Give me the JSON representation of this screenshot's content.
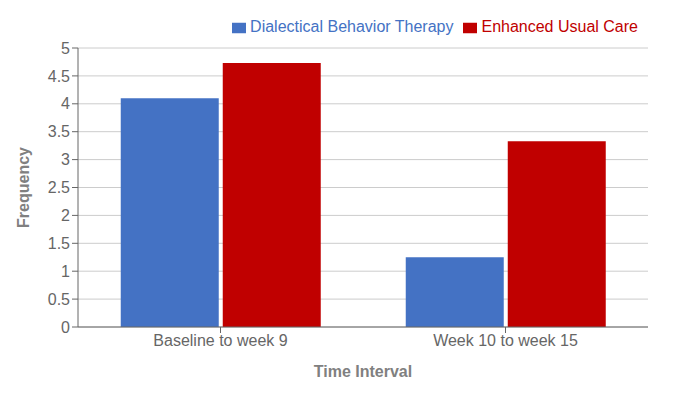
{
  "chart_data": {
    "type": "bar",
    "categories": [
      "Baseline to week 9",
      "Week 10 to week 15"
    ],
    "series": [
      {
        "name": "Dialectical Behavior Therapy",
        "color": "#4472C4",
        "values": [
          4.1,
          1.25
        ]
      },
      {
        "name": "Enhanced Usual Care",
        "color": "#C00000",
        "values": [
          4.73,
          3.33
        ]
      }
    ],
    "xlabel": "Time Interval",
    "ylabel": "Frequency",
    "ylim": [
      0,
      5
    ],
    "yticks": [
      0,
      0.5,
      1,
      1.5,
      2,
      2.5,
      3,
      3.5,
      4,
      4.5,
      5
    ],
    "grid": true,
    "legend": "upper right"
  }
}
